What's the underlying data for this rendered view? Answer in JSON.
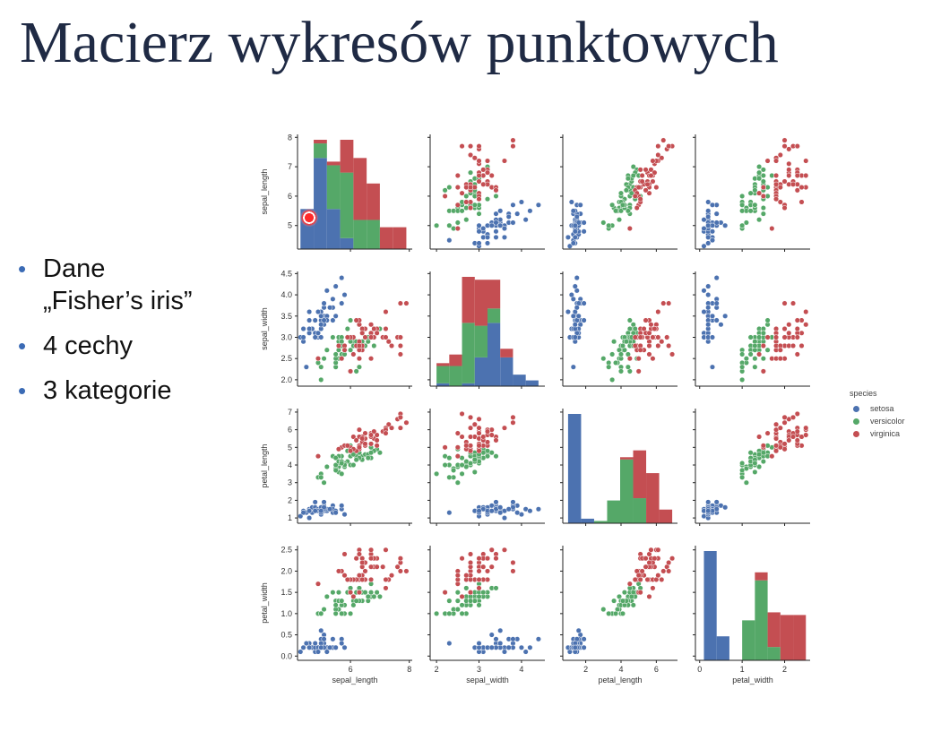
{
  "slide": {
    "title": "Macierz wykresów punktowych",
    "bullets": [
      {
        "text": "Dane",
        "text2": "„Fisher’s iris”"
      },
      {
        "text": "4 cechy"
      },
      {
        "text": "3 kategorie"
      }
    ]
  },
  "chart_data": {
    "type": "scatter",
    "features": [
      "sepal_length",
      "sepal_width",
      "petal_length",
      "petal_width"
    ],
    "ranges": [
      [
        4.2,
        8.1
      ],
      [
        1.85,
        4.55
      ],
      [
        0.7,
        7.2
      ],
      [
        -0.1,
        2.6
      ]
    ],
    "ticks": [
      [
        5,
        6,
        7,
        8
      ],
      [
        2.0,
        2.5,
        3.0,
        3.5,
        4.0,
        4.5
      ],
      [
        1,
        2,
        3,
        4,
        5,
        6,
        7
      ],
      [
        0.0,
        0.5,
        1.0,
        1.5,
        2.0,
        2.5
      ]
    ],
    "xticks": [
      [
        6,
        8
      ],
      [
        2,
        3,
        4
      ],
      [
        2,
        4,
        6
      ],
      [
        0,
        1,
        2
      ]
    ],
    "legend": {
      "title": "species",
      "position": "right"
    },
    "colors": {
      "setosa": "#4c72b0",
      "versicolor": "#55a868",
      "virginica": "#c44e52"
    },
    "series": [
      {
        "name": "setosa",
        "points": [
          [
            5.1,
            3.5,
            1.4,
            0.2
          ],
          [
            4.9,
            3.0,
            1.4,
            0.2
          ],
          [
            4.7,
            3.2,
            1.3,
            0.2
          ],
          [
            4.6,
            3.1,
            1.5,
            0.2
          ],
          [
            5.0,
            3.6,
            1.4,
            0.2
          ],
          [
            5.4,
            3.9,
            1.7,
            0.4
          ],
          [
            4.6,
            3.4,
            1.4,
            0.3
          ],
          [
            5.0,
            3.4,
            1.5,
            0.2
          ],
          [
            4.4,
            2.9,
            1.4,
            0.2
          ],
          [
            4.9,
            3.1,
            1.5,
            0.1
          ],
          [
            5.4,
            3.7,
            1.5,
            0.2
          ],
          [
            4.8,
            3.4,
            1.6,
            0.2
          ],
          [
            4.8,
            3.0,
            1.4,
            0.1
          ],
          [
            4.3,
            3.0,
            1.1,
            0.1
          ],
          [
            5.8,
            4.0,
            1.2,
            0.2
          ],
          [
            5.7,
            4.4,
            1.5,
            0.4
          ],
          [
            5.4,
            3.9,
            1.3,
            0.4
          ],
          [
            5.1,
            3.5,
            1.4,
            0.3
          ],
          [
            5.7,
            3.8,
            1.7,
            0.3
          ],
          [
            5.1,
            3.8,
            1.5,
            0.3
          ],
          [
            5.4,
            3.4,
            1.7,
            0.2
          ],
          [
            5.1,
            3.7,
            1.5,
            0.4
          ],
          [
            4.6,
            3.6,
            1.0,
            0.2
          ],
          [
            5.1,
            3.3,
            1.7,
            0.5
          ],
          [
            4.8,
            3.4,
            1.9,
            0.2
          ],
          [
            5.0,
            3.0,
            1.6,
            0.2
          ],
          [
            5.0,
            3.4,
            1.6,
            0.4
          ],
          [
            5.2,
            3.5,
            1.5,
            0.2
          ],
          [
            5.2,
            3.4,
            1.4,
            0.2
          ],
          [
            4.7,
            3.2,
            1.6,
            0.2
          ],
          [
            4.8,
            3.1,
            1.6,
            0.2
          ],
          [
            5.4,
            3.4,
            1.5,
            0.4
          ],
          [
            5.2,
            4.1,
            1.5,
            0.1
          ],
          [
            5.5,
            4.2,
            1.4,
            0.2
          ],
          [
            4.9,
            3.1,
            1.5,
            0.2
          ],
          [
            5.0,
            3.2,
            1.2,
            0.2
          ],
          [
            5.5,
            3.5,
            1.3,
            0.2
          ],
          [
            4.9,
            3.6,
            1.4,
            0.1
          ],
          [
            4.4,
            3.0,
            1.3,
            0.2
          ],
          [
            5.1,
            3.4,
            1.5,
            0.2
          ],
          [
            5.0,
            3.5,
            1.3,
            0.3
          ],
          [
            4.5,
            2.3,
            1.3,
            0.3
          ],
          [
            4.4,
            3.2,
            1.3,
            0.2
          ],
          [
            5.0,
            3.5,
            1.6,
            0.6
          ],
          [
            5.1,
            3.8,
            1.9,
            0.4
          ],
          [
            4.8,
            3.0,
            1.4,
            0.3
          ],
          [
            5.1,
            3.8,
            1.6,
            0.2
          ],
          [
            4.6,
            3.2,
            1.4,
            0.2
          ],
          [
            5.3,
            3.7,
            1.5,
            0.2
          ],
          [
            5.0,
            3.3,
            1.4,
            0.2
          ]
        ]
      },
      {
        "name": "versicolor",
        "points": [
          [
            7.0,
            3.2,
            4.7,
            1.4
          ],
          [
            6.4,
            3.2,
            4.5,
            1.5
          ],
          [
            6.9,
            3.1,
            4.9,
            1.5
          ],
          [
            5.5,
            2.3,
            4.0,
            1.3
          ],
          [
            6.5,
            2.8,
            4.6,
            1.5
          ],
          [
            5.7,
            2.8,
            4.5,
            1.3
          ],
          [
            6.3,
            3.3,
            4.7,
            1.6
          ],
          [
            4.9,
            2.4,
            3.3,
            1.0
          ],
          [
            6.6,
            2.9,
            4.6,
            1.3
          ],
          [
            5.2,
            2.7,
            3.9,
            1.4
          ],
          [
            5.0,
            2.0,
            3.5,
            1.0
          ],
          [
            5.9,
            3.0,
            4.2,
            1.5
          ],
          [
            6.0,
            2.2,
            4.0,
            1.0
          ],
          [
            6.1,
            2.9,
            4.7,
            1.4
          ],
          [
            5.6,
            2.9,
            3.6,
            1.3
          ],
          [
            6.7,
            3.1,
            4.4,
            1.4
          ],
          [
            5.6,
            3.0,
            4.5,
            1.5
          ],
          [
            5.8,
            2.7,
            4.1,
            1.0
          ],
          [
            6.2,
            2.2,
            4.5,
            1.5
          ],
          [
            5.6,
            2.5,
            3.9,
            1.1
          ],
          [
            5.9,
            3.2,
            4.8,
            1.8
          ],
          [
            6.1,
            2.8,
            4.0,
            1.3
          ],
          [
            6.3,
            2.5,
            4.9,
            1.5
          ],
          [
            6.1,
            2.8,
            4.7,
            1.2
          ],
          [
            6.4,
            2.9,
            4.3,
            1.3
          ],
          [
            6.6,
            3.0,
            4.4,
            1.4
          ],
          [
            6.8,
            2.8,
            4.8,
            1.4
          ],
          [
            6.7,
            3.0,
            5.0,
            1.7
          ],
          [
            6.0,
            2.9,
            4.5,
            1.5
          ],
          [
            5.7,
            2.6,
            3.5,
            1.0
          ],
          [
            5.5,
            2.4,
            3.8,
            1.1
          ],
          [
            5.5,
            2.4,
            3.7,
            1.0
          ],
          [
            5.8,
            2.7,
            3.9,
            1.2
          ],
          [
            6.0,
            2.7,
            5.1,
            1.6
          ],
          [
            5.4,
            3.0,
            4.5,
            1.5
          ],
          [
            6.0,
            3.4,
            4.5,
            1.6
          ],
          [
            6.7,
            3.1,
            4.7,
            1.5
          ],
          [
            6.3,
            2.3,
            4.4,
            1.3
          ],
          [
            5.6,
            3.0,
            4.1,
            1.3
          ],
          [
            5.5,
            2.5,
            4.0,
            1.3
          ],
          [
            5.5,
            2.6,
            4.4,
            1.2
          ],
          [
            6.1,
            3.0,
            4.6,
            1.4
          ],
          [
            5.8,
            2.6,
            4.0,
            1.2
          ],
          [
            5.0,
            2.3,
            3.3,
            1.0
          ],
          [
            5.6,
            2.7,
            4.2,
            1.3
          ],
          [
            5.7,
            3.0,
            4.2,
            1.2
          ],
          [
            5.7,
            2.9,
            4.2,
            1.3
          ],
          [
            6.2,
            2.9,
            4.3,
            1.3
          ],
          [
            5.1,
            2.5,
            3.0,
            1.1
          ],
          [
            5.7,
            2.8,
            4.1,
            1.3
          ]
        ]
      },
      {
        "name": "virginica",
        "points": [
          [
            6.3,
            3.3,
            6.0,
            2.5
          ],
          [
            5.8,
            2.7,
            5.1,
            1.9
          ],
          [
            7.1,
            3.0,
            5.9,
            2.1
          ],
          [
            6.3,
            2.9,
            5.6,
            1.8
          ],
          [
            6.5,
            3.0,
            5.8,
            2.2
          ],
          [
            7.6,
            3.0,
            6.6,
            2.1
          ],
          [
            4.9,
            2.5,
            4.5,
            1.7
          ],
          [
            7.3,
            2.9,
            6.3,
            1.8
          ],
          [
            6.7,
            2.5,
            5.8,
            1.8
          ],
          [
            7.2,
            3.6,
            6.1,
            2.5
          ],
          [
            6.5,
            3.2,
            5.1,
            2.0
          ],
          [
            6.4,
            2.7,
            5.3,
            1.9
          ],
          [
            6.8,
            3.0,
            5.5,
            2.1
          ],
          [
            5.7,
            2.5,
            5.0,
            2.0
          ],
          [
            5.8,
            2.8,
            5.1,
            2.4
          ],
          [
            6.4,
            3.2,
            5.3,
            2.3
          ],
          [
            6.5,
            3.0,
            5.5,
            1.8
          ],
          [
            7.7,
            3.8,
            6.7,
            2.2
          ],
          [
            7.7,
            2.6,
            6.9,
            2.3
          ],
          [
            6.0,
            2.2,
            5.0,
            1.5
          ],
          [
            6.9,
            3.2,
            5.7,
            2.3
          ],
          [
            5.6,
            2.8,
            4.9,
            2.0
          ],
          [
            7.7,
            2.8,
            6.7,
            2.0
          ],
          [
            6.3,
            2.7,
            4.9,
            1.8
          ],
          [
            6.7,
            3.3,
            5.7,
            2.1
          ],
          [
            7.2,
            3.2,
            6.0,
            1.8
          ],
          [
            6.2,
            2.8,
            4.8,
            1.8
          ],
          [
            6.1,
            3.0,
            4.9,
            1.8
          ],
          [
            6.4,
            2.8,
            5.6,
            2.1
          ],
          [
            7.2,
            3.0,
            5.8,
            1.6
          ],
          [
            7.4,
            2.8,
            6.1,
            1.9
          ],
          [
            7.9,
            3.8,
            6.4,
            2.0
          ],
          [
            6.4,
            2.8,
            5.6,
            2.2
          ],
          [
            6.3,
            2.8,
            5.1,
            1.5
          ],
          [
            6.1,
            2.6,
            5.6,
            1.4
          ],
          [
            7.7,
            3.0,
            6.1,
            2.3
          ],
          [
            6.3,
            3.4,
            5.6,
            2.4
          ],
          [
            6.4,
            3.1,
            5.5,
            1.8
          ],
          [
            6.0,
            3.0,
            4.8,
            1.8
          ],
          [
            6.9,
            3.1,
            5.4,
            2.1
          ],
          [
            6.7,
            3.1,
            5.6,
            2.4
          ],
          [
            6.9,
            3.1,
            5.1,
            2.3
          ],
          [
            5.8,
            2.7,
            5.1,
            1.9
          ],
          [
            6.8,
            3.2,
            5.9,
            2.3
          ],
          [
            6.7,
            3.3,
            5.7,
            2.5
          ],
          [
            6.7,
            3.0,
            5.2,
            2.3
          ],
          [
            6.3,
            2.5,
            5.0,
            1.9
          ],
          [
            6.5,
            3.0,
            5.2,
            2.0
          ],
          [
            6.2,
            3.4,
            5.4,
            2.3
          ],
          [
            5.9,
            3.0,
            5.1,
            1.8
          ]
        ]
      }
    ]
  }
}
